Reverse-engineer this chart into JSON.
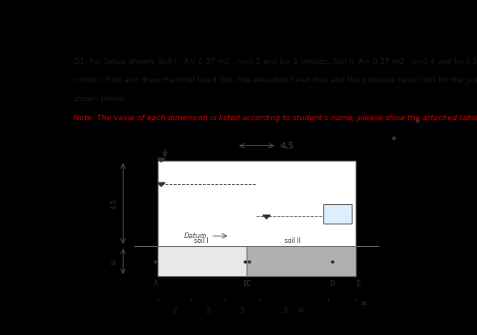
{
  "bg_outer": "#000000",
  "bg_inner": "#d6e8f5",
  "text_color": "#1a1a1a",
  "note_color": "#cc0000",
  "title_line1": "Q1: For Setup shown: Soil I , A= 0.37 m2 , n=0.5 and k= 1 cm/sec, Soil II, A= 0.37 m2 , n=0.4 and k=0.5",
  "title_line2": "cm/sec. Find and draw the total head (ht), the elevation head (he) and the pressure head (hp) for the points as",
  "title_line3": "shown below:",
  "note_line": "Note: The value of each dimension is listed according to student’s name, please show the attached table .",
  "dim_left_top": "4.5",
  "dim_left_bot": "y₁",
  "dim_top": "4.5",
  "label_datum": "Datum",
  "label_soil1": "soil I",
  "label_soil2": "soil II",
  "point_labels": [
    "A",
    "B",
    "C",
    "D",
    "E"
  ],
  "bottom_dims": [
    "2",
    "2",
    "3",
    "3 . 4",
    "x₁"
  ]
}
